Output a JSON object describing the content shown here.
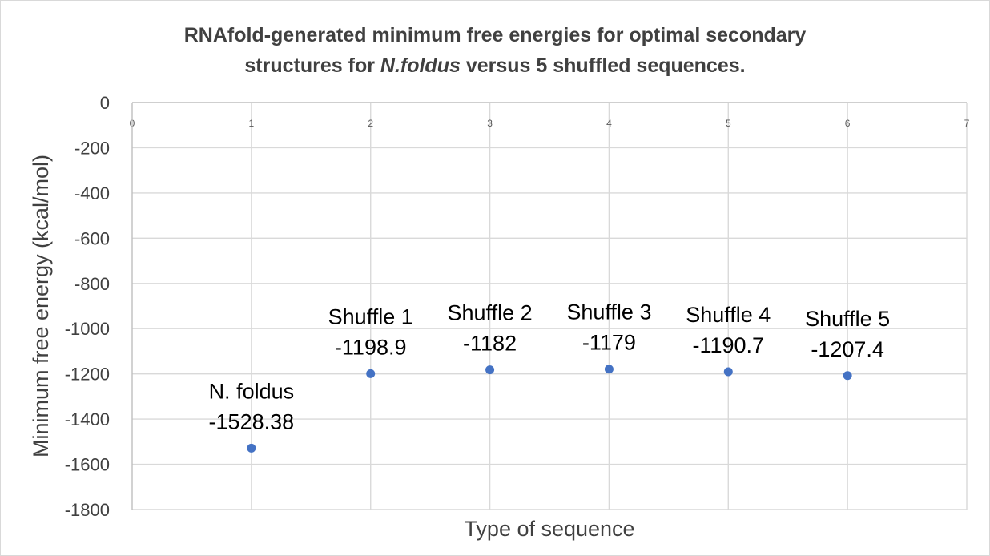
{
  "chart_data": {
    "type": "scatter",
    "title_line1": "RNAfold-generated minimum free energies for optimal secondary",
    "title_line2_prefix": "structures for ",
    "title_line2_italic": "N.foldus",
    "title_line2_suffix": " versus 5 shuffled sequences.",
    "xlabel": "Type of sequence",
    "ylabel": "Minimum free energy (kcal/mol)",
    "xlim": [
      0,
      7
    ],
    "ylim": [
      -1800,
      0
    ],
    "x_ticks": [
      0,
      1,
      2,
      3,
      4,
      5,
      6,
      7
    ],
    "y_ticks": [
      0,
      -200,
      -400,
      -600,
      -800,
      -1000,
      -1200,
      -1400,
      -1600,
      -1800
    ],
    "grid": true,
    "marker_color": "#4472C4",
    "points": [
      {
        "x": 1,
        "y": -1528.38,
        "label_name": "N. foldus",
        "label_value": "-1528.38"
      },
      {
        "x": 2,
        "y": -1198.9,
        "label_name": "Shuffle 1",
        "label_value": "-1198.9"
      },
      {
        "x": 3,
        "y": -1182,
        "label_name": "Shuffle 2",
        "label_value": "-1182"
      },
      {
        "x": 4,
        "y": -1179,
        "label_name": "Shuffle 3",
        "label_value": "-1179"
      },
      {
        "x": 5,
        "y": -1190.7,
        "label_name": "Shuffle 4",
        "label_value": "-1190.7"
      },
      {
        "x": 6,
        "y": -1207.4,
        "label_name": "Shuffle 5",
        "label_value": "-1207.4"
      }
    ]
  }
}
